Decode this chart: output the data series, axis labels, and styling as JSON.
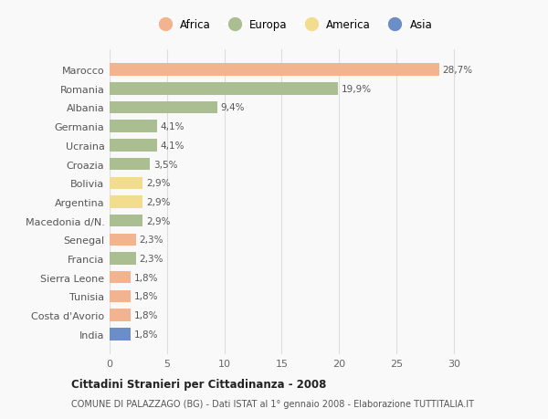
{
  "categories": [
    "Marocco",
    "Romania",
    "Albania",
    "Germania",
    "Ucraina",
    "Croazia",
    "Bolivia",
    "Argentina",
    "Macedonia d/N.",
    "Senegal",
    "Francia",
    "Sierra Leone",
    "Tunisia",
    "Costa d'Avorio",
    "India"
  ],
  "values": [
    28.7,
    19.9,
    9.4,
    4.1,
    4.1,
    3.5,
    2.9,
    2.9,
    2.9,
    2.3,
    2.3,
    1.8,
    1.8,
    1.8,
    1.8
  ],
  "continents": [
    "Africa",
    "Europa",
    "Europa",
    "Europa",
    "Europa",
    "Europa",
    "America",
    "America",
    "Europa",
    "Africa",
    "Europa",
    "Africa",
    "Africa",
    "Africa",
    "Asia"
  ],
  "colors": {
    "Africa": "#F2B48E",
    "Europa": "#ABBE92",
    "America": "#F2DC8E",
    "Asia": "#6B8EC8"
  },
  "labels": [
    "28,7%",
    "19,9%",
    "9,4%",
    "4,1%",
    "4,1%",
    "3,5%",
    "2,9%",
    "2,9%",
    "2,9%",
    "2,3%",
    "2,3%",
    "1,8%",
    "1,8%",
    "1,8%",
    "1,8%"
  ],
  "title": "Cittadini Stranieri per Cittadinanza - 2008",
  "subtitle": "COMUNE DI PALAZZAGO (BG) - Dati ISTAT al 1° gennaio 2008 - Elaborazione TUTTITALIA.IT",
  "xlim": [
    0,
    32
  ],
  "xticks": [
    0,
    5,
    10,
    15,
    20,
    25,
    30
  ],
  "background_color": "#f9f9f9",
  "bar_height": 0.65,
  "grid_color": "#dddddd",
  "legend_order": [
    "Africa",
    "Europa",
    "America",
    "Asia"
  ]
}
